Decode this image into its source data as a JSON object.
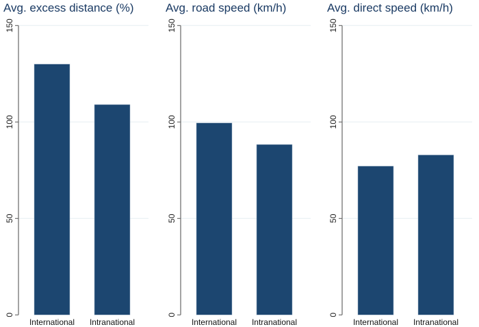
{
  "chart_data": [
    {
      "type": "bar",
      "title": "Avg. excess distance (%)",
      "categories": [
        "International",
        "Intranational"
      ],
      "values": [
        130,
        109
      ],
      "ylim": [
        0,
        150
      ],
      "yticks": [
        0,
        50,
        100,
        150
      ],
      "grid": true,
      "color": "#1c4670"
    },
    {
      "type": "bar",
      "title": "Avg. road speed (km/h)",
      "categories": [
        "International",
        "Intranational"
      ],
      "values": [
        99.5,
        88.3
      ],
      "ylim": [
        0,
        150
      ],
      "yticks": [
        0,
        50,
        100,
        150
      ],
      "grid": true,
      "color": "#1c4670"
    },
    {
      "type": "bar",
      "title": "Avg. direct speed (km/h)",
      "categories": [
        "International",
        "Intranational"
      ],
      "values": [
        77.1,
        82.9
      ],
      "ylim": [
        0,
        150
      ],
      "yticks": [
        0,
        50,
        100,
        150
      ],
      "grid": true,
      "color": "#1c4670"
    }
  ]
}
